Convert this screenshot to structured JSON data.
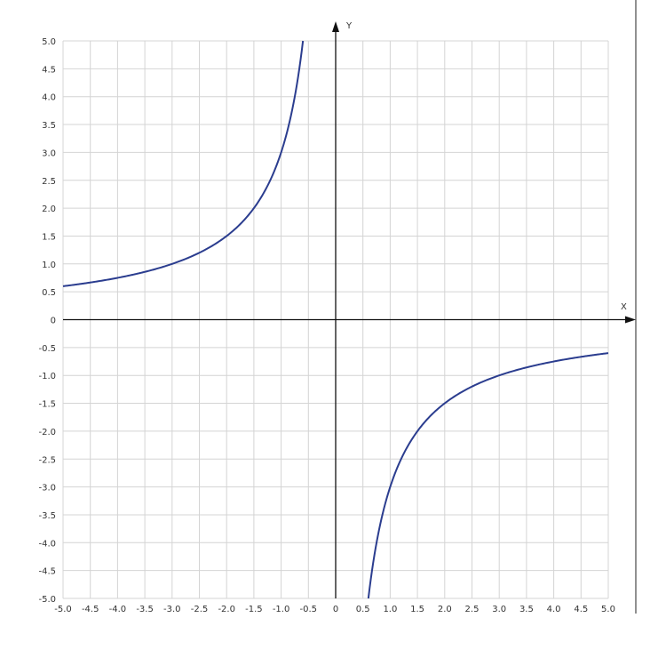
{
  "chart_data": {
    "type": "line",
    "title": "",
    "xlabel": "X",
    "ylabel": "Y",
    "xlim": [
      -5,
      5
    ],
    "ylim": [
      -5,
      5
    ],
    "grid": true,
    "grid_step": 0.5,
    "x_ticks": [
      "-5.0",
      "-4.5",
      "-4.0",
      "-3.5",
      "-3.0",
      "-2.5",
      "-2.0",
      "-1.5",
      "-1.0",
      "-0.5",
      "0",
      "0.5",
      "1.0",
      "1.5",
      "2.0",
      "2.5",
      "3.0",
      "3.5",
      "4.0",
      "4.5",
      "5.0"
    ],
    "y_ticks": [
      "5.0",
      "4.5",
      "4.0",
      "3.5",
      "3.0",
      "2.5",
      "2.0",
      "1.5",
      "1.0",
      "0.5",
      "0",
      "-0.5",
      "-1.0",
      "-1.5",
      "-2.0",
      "-2.5",
      "-3.0",
      "-3.5",
      "-4.0",
      "-4.5",
      "-5.0"
    ],
    "series": [
      {
        "function": "y = -3/x",
        "color": "#2b3d8f",
        "points": [
          [
            -5,
            0.6
          ],
          [
            -4,
            0.75
          ],
          [
            -3,
            1.0
          ],
          [
            -2,
            1.5
          ],
          [
            -1.5,
            2.0
          ],
          [
            -1,
            3.0
          ],
          [
            -0.75,
            4.0
          ],
          [
            -0.6,
            5.0
          ],
          [
            0.6,
            -5.0
          ],
          [
            0.75,
            -4.0
          ],
          [
            1,
            -3.0
          ],
          [
            1.5,
            -2.0
          ],
          [
            2,
            -1.5
          ],
          [
            3,
            -1.0
          ],
          [
            4,
            -0.75
          ],
          [
            5,
            -0.6
          ]
        ]
      }
    ]
  },
  "colors": {
    "grid": "#d4d4d4",
    "axis": "#111111",
    "curve": "#2b3d8f"
  }
}
